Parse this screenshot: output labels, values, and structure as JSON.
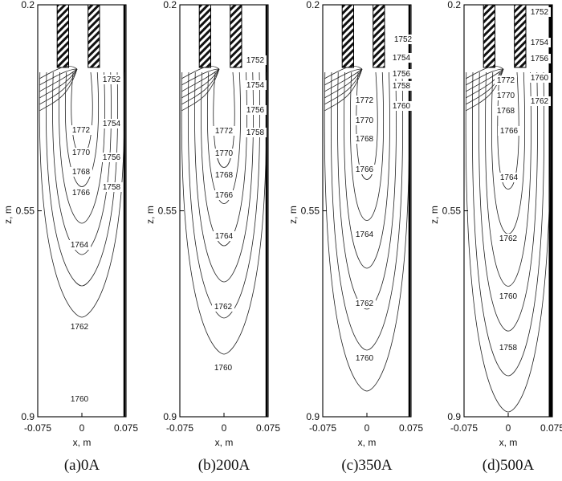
{
  "chart_data": [
    {
      "type": "contour",
      "caption": "(a)0A",
      "xlabel": "x, m",
      "ylabel": "z, m",
      "xlim": [
        -0.075,
        0.075
      ],
      "ylim": [
        0.2,
        0.9
      ],
      "xticks": [
        "-0.075",
        "0",
        "0.075"
      ],
      "yticks": [
        "0.2",
        "0.55",
        "0.9"
      ],
      "contour_levels": [
        "1752",
        "1754",
        "1756",
        "1758",
        "1772",
        "1770",
        "1768",
        "1766",
        "1764",
        "1762",
        "1760"
      ]
    },
    {
      "type": "contour",
      "caption": "(b)200A",
      "xlabel": "x, m",
      "ylabel": "z, m",
      "xlim": [
        -0.075,
        0.075
      ],
      "ylim": [
        0.2,
        0.9
      ],
      "xticks": [
        "-0.075",
        "0",
        "0.075"
      ],
      "yticks": [
        "0.2",
        "0.55",
        "0.9"
      ],
      "contour_levels": [
        "1752",
        "1754",
        "1756",
        "1758",
        "1772",
        "1770",
        "1768",
        "1766",
        "1764",
        "1762",
        "1760"
      ]
    },
    {
      "type": "contour",
      "caption": "(c)350A",
      "xlabel": "x, m",
      "ylabel": "z, m",
      "xlim": [
        -0.075,
        0.075
      ],
      "ylim": [
        0.2,
        0.9
      ],
      "xticks": [
        "-0.075",
        "0",
        "0.075"
      ],
      "yticks": [
        "0.2",
        "0.55",
        "0.9"
      ],
      "contour_levels": [
        "1752",
        "1754",
        "1756",
        "1758",
        "1760",
        "1772",
        "1770",
        "1768",
        "1766",
        "1764",
        "1762",
        "1760"
      ]
    },
    {
      "type": "contour",
      "caption": "(d)500A",
      "xlabel": "x, m",
      "ylabel": "z, m",
      "xlim": [
        -0.075,
        0.075
      ],
      "ylim": [
        0.2,
        0.9
      ],
      "xticks": [
        "-0.075",
        "0",
        "0.075"
      ],
      "yticks": [
        "0.2",
        "0.55",
        "0.9"
      ],
      "contour_levels": [
        "1752",
        "1754",
        "1756",
        "1760",
        "1762",
        "1772",
        "1770",
        "1768",
        "1766",
        "1764",
        "1762",
        "1760",
        "1758"
      ]
    }
  ]
}
